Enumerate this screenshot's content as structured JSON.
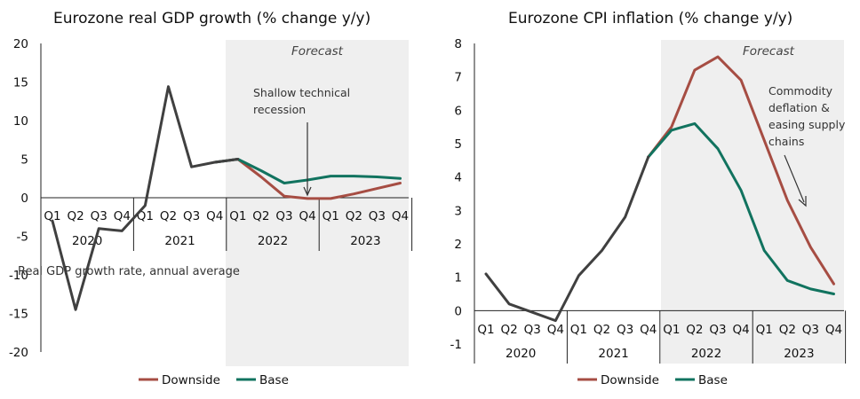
{
  "colors": {
    "downside": "#a64d43",
    "base": "#11735f",
    "history": "#404040",
    "forecast_bg": "#efefef"
  },
  "legend": {
    "downside": "Downside",
    "base": "Base"
  },
  "chart_data": [
    {
      "type": "line",
      "title": "Eurozone real GDP growth (% change y/y)",
      "quarters": [
        "Q1",
        "Q2",
        "Q3",
        "Q4",
        "Q1",
        "Q2",
        "Q3",
        "Q4",
        "Q1",
        "Q2",
        "Q3",
        "Q4",
        "Q1",
        "Q2",
        "Q3",
        "Q4"
      ],
      "years": [
        "2020",
        "2021",
        "2022",
        "2023"
      ],
      "ylim": [
        -20,
        20
      ],
      "yticks": [
        "20",
        "15",
        "10",
        "5",
        "0",
        "-5",
        "-10",
        "-15",
        "-20"
      ],
      "forecast_label": "Forecast",
      "annotation": "Shallow technical recession",
      "footnote": "Real GDP growth rate, annual average",
      "series": [
        {
          "name": "history",
          "values": [
            -3,
            -14.5,
            -4,
            -4.3,
            -1,
            14.4,
            4,
            4.6,
            5,
            null,
            null,
            null,
            null,
            null,
            null,
            null
          ]
        },
        {
          "name": "Downside",
          "values": [
            null,
            null,
            null,
            null,
            null,
            null,
            null,
            4.6,
            5,
            2.7,
            0.2,
            -0.1,
            -0.1,
            0.5,
            1.2,
            1.9
          ]
        },
        {
          "name": "Base",
          "values": [
            null,
            null,
            null,
            null,
            null,
            null,
            null,
            4.6,
            5,
            3.5,
            1.9,
            2.3,
            2.8,
            2.8,
            2.7,
            2.5
          ]
        }
      ]
    },
    {
      "type": "line",
      "title": "Eurozone CPI inflation (% change y/y)",
      "quarters": [
        "Q1",
        "Q2",
        "Q3",
        "Q4",
        "Q1",
        "Q2",
        "Q3",
        "Q4",
        "Q1",
        "Q2",
        "Q3",
        "Q4",
        "Q1",
        "Q2",
        "Q3",
        "Q4"
      ],
      "years": [
        "2020",
        "2021",
        "2022",
        "2023"
      ],
      "ylim": [
        -1,
        8
      ],
      "yticks": [
        "8",
        "7",
        "6",
        "5",
        "4",
        "3",
        "2",
        "1",
        "0",
        "-1"
      ],
      "forecast_label": "Forecast",
      "annotation": "Commodity deflation & easing supply chains",
      "series": [
        {
          "name": "history",
          "values": [
            1.1,
            0.2,
            -0.05,
            -0.3,
            1.05,
            1.8,
            2.8,
            4.6,
            null,
            null,
            null,
            null,
            null,
            null,
            null,
            null
          ]
        },
        {
          "name": "Downside",
          "values": [
            null,
            null,
            null,
            null,
            null,
            null,
            null,
            4.6,
            5.5,
            7.2,
            7.6,
            6.9,
            5.1,
            3.3,
            1.9,
            0.8
          ]
        },
        {
          "name": "Base",
          "values": [
            null,
            null,
            null,
            null,
            null,
            null,
            null,
            4.6,
            5.4,
            5.6,
            4.85,
            3.6,
            1.8,
            0.9,
            0.65,
            0.5
          ]
        }
      ]
    }
  ]
}
